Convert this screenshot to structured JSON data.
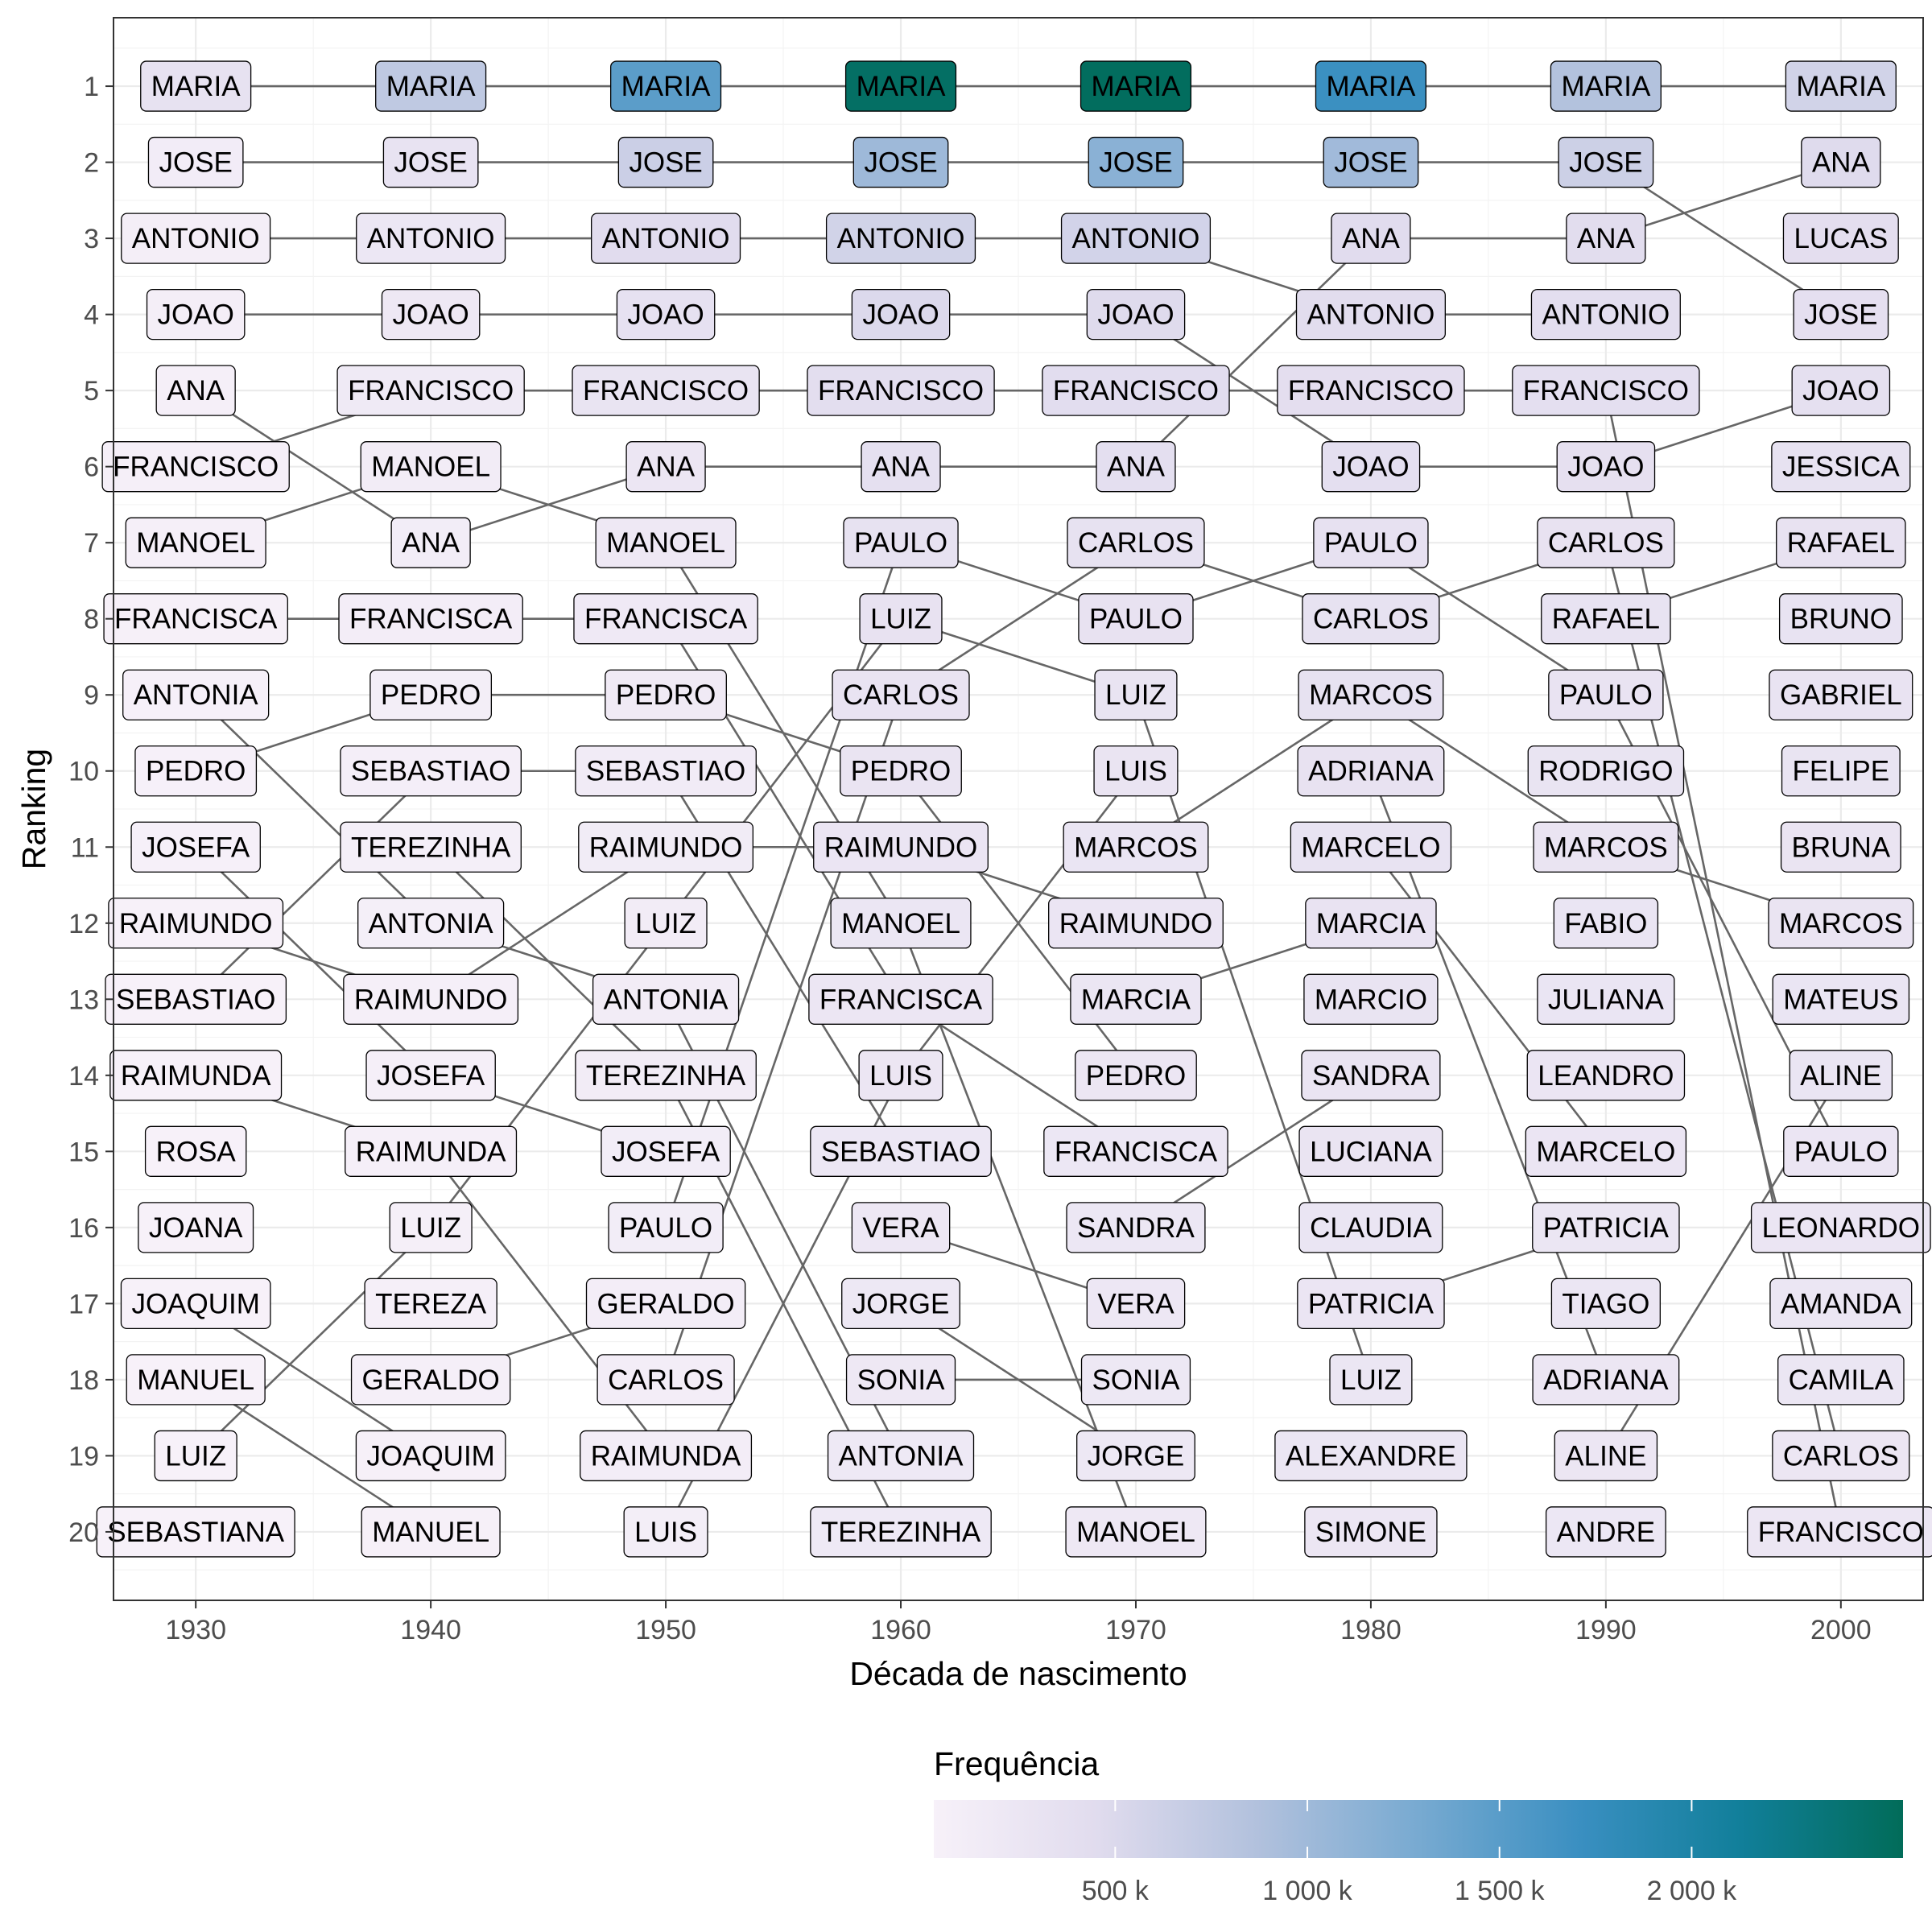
{
  "chart_data": {
    "type": "bump",
    "xlabel": "Década de nascimento",
    "ylabel": "Ranking",
    "x": [
      1930,
      1940,
      1950,
      1960,
      1970,
      1980,
      1990,
      2000
    ],
    "y_ticks": [
      1,
      2,
      3,
      4,
      5,
      6,
      7,
      8,
      9,
      10,
      11,
      12,
      13,
      14,
      15,
      16,
      17,
      18,
      19,
      20
    ],
    "xlim": [
      1926.5,
      2003.5
    ],
    "ylim": [
      0.1,
      20.9
    ],
    "grid": true,
    "legend": {
      "title": "Frequência",
      "position": "bottom",
      "range": [
        28000,
        2550000
      ],
      "breaks": [
        500000,
        1000000,
        1500000,
        2000000
      ],
      "break_labels": [
        "500 k",
        "1 000 k",
        "1 500 k",
        "2 000 k"
      ],
      "colors": [
        "#f7f1f9",
        "#e1dcee",
        "#b2c1dd",
        "#78aad1",
        "#3a8fc1",
        "#117f9a",
        "#016c59"
      ]
    },
    "rankings": [
      {
        "decade": 1930,
        "names": [
          "MARIA",
          "JOSE",
          "ANTONIO",
          "JOAO",
          "ANA",
          "FRANCISCO",
          "MANOEL",
          "FRANCISCA",
          "ANTONIA",
          "PEDRO",
          "JOSEFA",
          "RAIMUNDO",
          "SEBASTIAO",
          "RAIMUNDA",
          "ROSA",
          "JOANA",
          "JOAQUIM",
          "MANUEL",
          "LUIZ",
          "SEBASTIANA"
        ],
        "freq": [
          336000,
          119000,
          94000,
          93000,
          70000,
          69000,
          63000,
          52000,
          46000,
          44000,
          42000,
          36000,
          35000,
          32000,
          30000,
          29000,
          28000,
          27000,
          26000,
          25000
        ]
      },
      {
        "decade": 1940,
        "names": [
          "MARIA",
          "JOSE",
          "ANTONIO",
          "JOAO",
          "FRANCISCO",
          "MANOEL",
          "ANA",
          "FRANCISCA",
          "PEDRO",
          "SEBASTIAO",
          "TEREZINHA",
          "ANTONIA",
          "RAIMUNDO",
          "JOSEFA",
          "RAIMUNDA",
          "LUIZ",
          "TEREZA",
          "GERALDO",
          "JOAQUIM",
          "MANUEL"
        ],
        "freq": [
          749000,
          312000,
          231000,
          205000,
          178000,
          124000,
          115000,
          110000,
          95000,
          80000,
          78000,
          76000,
          72000,
          70000,
          68000,
          66000,
          62000,
          60000,
          55000,
          53000
        ]
      },
      {
        "decade": 1950,
        "names": [
          "MARIA",
          "JOSE",
          "ANTONIO",
          "JOAO",
          "FRANCISCO",
          "ANA",
          "MANOEL",
          "FRANCISCA",
          "PEDRO",
          "SEBASTIAO",
          "RAIMUNDO",
          "LUIZ",
          "ANTONIA",
          "TEREZINHA",
          "JOSEFA",
          "PAULO",
          "GERALDO",
          "CARLOS",
          "RAIMUNDA",
          "LUIS"
        ],
        "freq": [
          1487000,
          648000,
          443000,
          352000,
          290000,
          247000,
          201000,
          187000,
          165000,
          141000,
          138000,
          132000,
          131000,
          126000,
          118000,
          114000,
          110000,
          106000,
          100000,
          98000
        ]
      },
      {
        "decade": 1960,
        "names": [
          "MARIA",
          "JOSE",
          "ANTONIO",
          "JOAO",
          "FRANCISCO",
          "ANA",
          "PAULO",
          "LUIZ",
          "CARLOS",
          "PEDRO",
          "RAIMUNDO",
          "MANOEL",
          "FRANCISCA",
          "LUIS",
          "SEBASTIAO",
          "VERA",
          "JORGE",
          "SONIA",
          "ANTONIA",
          "TEREZINHA"
        ],
        "freq": [
          2480000,
          1012000,
          591000,
          491000,
          415000,
          368000,
          333000,
          321000,
          302000,
          285000,
          262000,
          254000,
          245000,
          240000,
          233000,
          226000,
          210000,
          205000,
          198000,
          192000
        ]
      },
      {
        "decade": 1970,
        "names": [
          "MARIA",
          "JOSE",
          "ANTONIO",
          "JOAO",
          "FRANCISCO",
          "ANA",
          "CARLOS",
          "PAULO",
          "LUIZ",
          "LUIS",
          "MARCOS",
          "RAIMUNDO",
          "MARCIA",
          "PEDRO",
          "FRANCISCA",
          "SANDRA",
          "VERA",
          "SONIA",
          "JORGE",
          "MANOEL"
        ],
        "freq": [
          2520000,
          1160000,
          584000,
          470000,
          428000,
          387000,
          335000,
          322000,
          296000,
          285000,
          275000,
          265000,
          252000,
          245000,
          238000,
          233000,
          224000,
          216000,
          210000,
          205000
        ]
      },
      {
        "decade": 1980,
        "names": [
          "MARIA",
          "JOSE",
          "ANA",
          "ANTONIO",
          "FRANCISCO",
          "JOAO",
          "PAULO",
          "CARLOS",
          "MARCOS",
          "ADRIANA",
          "MARCELO",
          "MARCIA",
          "MARCIO",
          "SANDRA",
          "LUCIANA",
          "CLAUDIA",
          "PATRICIA",
          "LUIZ",
          "ALEXANDRE",
          "SIMONE"
        ],
        "freq": [
          1700000,
          990000,
          450000,
          430000,
          400000,
          385000,
          340000,
          335000,
          330000,
          320000,
          310000,
          300000,
          290000,
          285000,
          280000,
          270000,
          265000,
          255000,
          250000,
          245000
        ]
      },
      {
        "decade": 1990,
        "names": [
          "MARIA",
          "JOSE",
          "ANA",
          "ANTONIO",
          "FRANCISCO",
          "JOAO",
          "CARLOS",
          "RAFAEL",
          "PAULO",
          "RODRIGO",
          "MARCOS",
          "FABIO",
          "JULIANA",
          "LEANDRO",
          "MARCELO",
          "PATRICIA",
          "TIAGO",
          "ADRIANA",
          "ALINE",
          "ANDRE"
        ],
        "freq": [
          860000,
          640000,
          430000,
          410000,
          390000,
          360000,
          320000,
          310000,
          300000,
          295000,
          285000,
          275000,
          270000,
          265000,
          260000,
          255000,
          250000,
          245000,
          240000,
          235000
        ]
      },
      {
        "decade": 2000,
        "names": [
          "MARIA",
          "ANA",
          "LUCAS",
          "JOSE",
          "JOAO",
          "JESSICA",
          "RAFAEL",
          "BRUNO",
          "GABRIEL",
          "FELIPE",
          "BRUNA",
          "MARCOS",
          "MATEUS",
          "ALINE",
          "PAULO",
          "LEONARDO",
          "AMANDA",
          "CAMILA",
          "CARLOS",
          "FRANCISCO"
        ],
        "freq": [
          590000,
          465000,
          400000,
          380000,
          370000,
          330000,
          320000,
          310000,
          300000,
          290000,
          285000,
          280000,
          275000,
          270000,
          265000,
          260000,
          255000,
          250000,
          245000,
          240000
        ]
      }
    ]
  }
}
